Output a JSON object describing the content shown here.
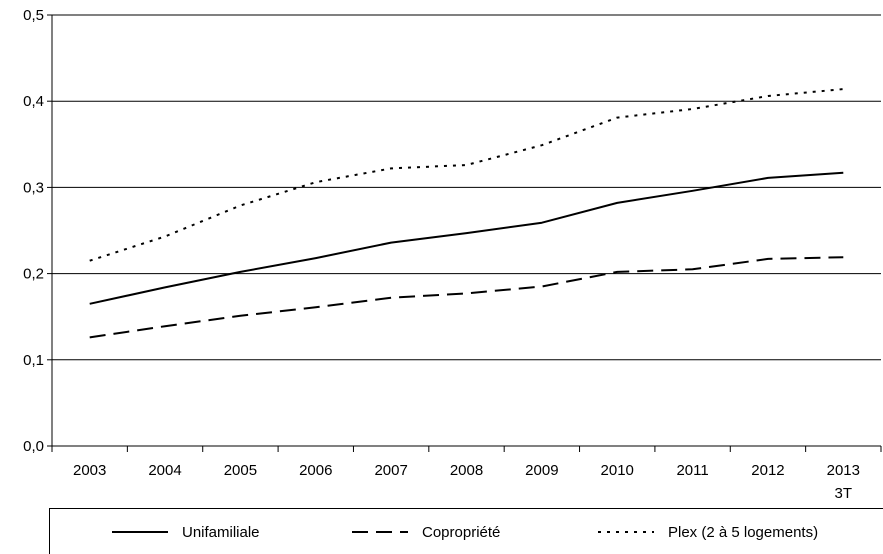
{
  "chart_data": {
    "type": "line",
    "title": "",
    "xlabel": "",
    "ylabel": "",
    "categories": [
      "2003",
      "2004",
      "2005",
      "2006",
      "2007",
      "2008",
      "2009",
      "2010",
      "2011",
      "2012",
      "2013"
    ],
    "last_category_sublabel": "3T",
    "ylim": [
      0,
      0.5
    ],
    "yticks": [
      "0,0",
      "0,1",
      "0,2",
      "0,3",
      "0,4",
      "0,5"
    ],
    "grid": true,
    "legend_position": "bottom",
    "series": [
      {
        "name": "Unifamiliale",
        "style": "solid",
        "color": "#000000",
        "values": [
          0.165,
          0.184,
          0.202,
          0.218,
          0.236,
          0.247,
          0.259,
          0.282,
          0.296,
          0.311,
          0.317
        ]
      },
      {
        "name": "Copropriété",
        "style": "dashed",
        "color": "#000000",
        "values": [
          0.126,
          0.139,
          0.151,
          0.161,
          0.172,
          0.177,
          0.185,
          0.202,
          0.205,
          0.217,
          0.219
        ]
      },
      {
        "name": "Plex (2 à 5 logements)",
        "style": "dotted",
        "color": "#000000",
        "values": [
          0.215,
          0.243,
          0.279,
          0.306,
          0.322,
          0.326,
          0.349,
          0.381,
          0.391,
          0.406,
          0.414
        ]
      }
    ]
  }
}
